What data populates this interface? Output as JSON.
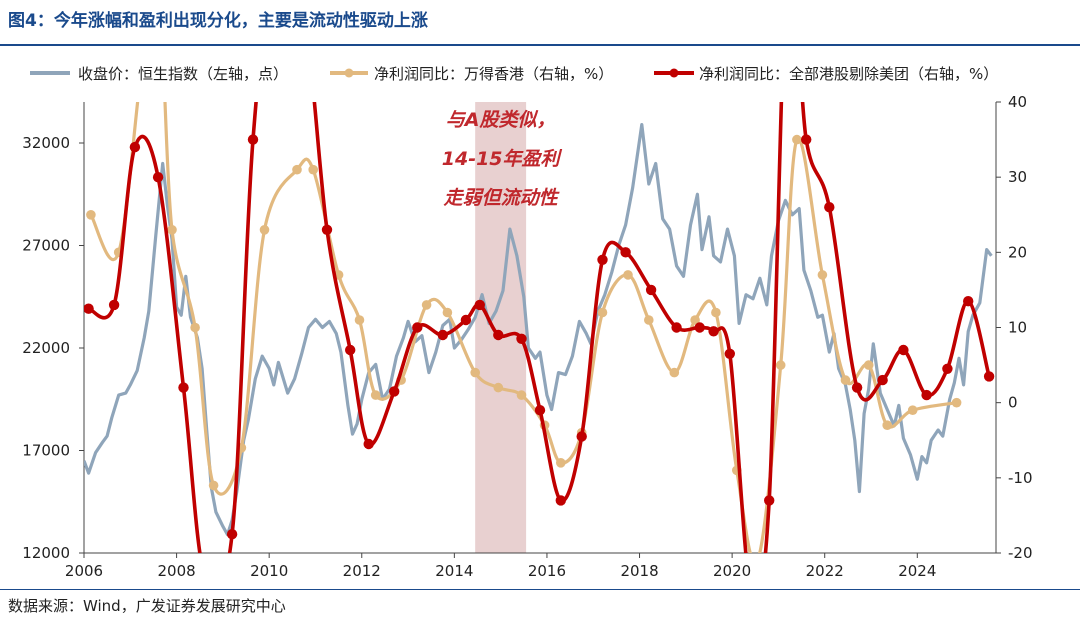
{
  "page": {
    "title": "图4：今年涨幅和盈利出现分化，主要是流动性驱动上涨",
    "source": "数据来源：Wind，广发证券发展研究中心"
  },
  "chart_data": {
    "type": "line",
    "title": "图4：今年涨幅和盈利出现分化，主要是流动性驱动上涨",
    "xlim": [
      2006.0,
      2025.7
    ],
    "x_ticks": [
      "2006",
      "2008",
      "2010",
      "2012",
      "2014",
      "2016",
      "2018",
      "2020",
      "2022",
      "2024"
    ],
    "y_left": {
      "ylim": [
        12000,
        34000
      ],
      "ticks": [
        "12000",
        "17000",
        "22000",
        "27000",
        "32000"
      ]
    },
    "y_right": {
      "ylim": [
        -20,
        40
      ],
      "ticks": [
        "-20",
        "-10",
        "0",
        "10",
        "20",
        "30",
        "40"
      ]
    },
    "legend_position": "top",
    "grid": false,
    "annotation": {
      "text_lines": [
        "与A股类似，",
        "14-15年盈利",
        "走弱但流动性"
      ],
      "shade_x": [
        2014.45,
        2015.55
      ],
      "color": "#c0282d"
    },
    "series": [
      {
        "name": "收盘价：恒生指数（左轴，点）",
        "axis": "left",
        "color": "#8fa5ba",
        "markers": false,
        "points": [
          [
            2006.0,
            16500
          ],
          [
            2006.1,
            15900
          ],
          [
            2006.25,
            16900
          ],
          [
            2006.4,
            17400
          ],
          [
            2006.5,
            17700
          ],
          [
            2006.6,
            18600
          ],
          [
            2006.75,
            19700
          ],
          [
            2006.9,
            19800
          ],
          [
            2007.0,
            20200
          ],
          [
            2007.15,
            20900
          ],
          [
            2007.3,
            22500
          ],
          [
            2007.4,
            23800
          ],
          [
            2007.55,
            27500
          ],
          [
            2007.7,
            31000
          ],
          [
            2007.8,
            29000
          ],
          [
            2007.9,
            27300
          ],
          [
            2008.0,
            24000
          ],
          [
            2008.1,
            23600
          ],
          [
            2008.2,
            25500
          ],
          [
            2008.3,
            23500
          ],
          [
            2008.45,
            22500
          ],
          [
            2008.55,
            21000
          ],
          [
            2008.65,
            18000
          ],
          [
            2008.75,
            15200
          ],
          [
            2008.85,
            14000
          ],
          [
            2009.0,
            13300
          ],
          [
            2009.1,
            12900
          ],
          [
            2009.2,
            13600
          ],
          [
            2009.3,
            15000
          ],
          [
            2009.45,
            17500
          ],
          [
            2009.55,
            18500
          ],
          [
            2009.7,
            20500
          ],
          [
            2009.85,
            21600
          ],
          [
            2010.0,
            21000
          ],
          [
            2010.1,
            20200
          ],
          [
            2010.2,
            21300
          ],
          [
            2010.4,
            19800
          ],
          [
            2010.55,
            20500
          ],
          [
            2010.7,
            21700
          ],
          [
            2010.85,
            23000
          ],
          [
            2011.0,
            23400
          ],
          [
            2011.15,
            23000
          ],
          [
            2011.3,
            23300
          ],
          [
            2011.45,
            22700
          ],
          [
            2011.55,
            21800
          ],
          [
            2011.7,
            19200
          ],
          [
            2011.8,
            17800
          ],
          [
            2011.9,
            18300
          ],
          [
            2012.0,
            19500
          ],
          [
            2012.15,
            20800
          ],
          [
            2012.3,
            21200
          ],
          [
            2012.45,
            19500
          ],
          [
            2012.6,
            20000
          ],
          [
            2012.75,
            21600
          ],
          [
            2012.9,
            22500
          ],
          [
            2013.0,
            23300
          ],
          [
            2013.15,
            22300
          ],
          [
            2013.3,
            22600
          ],
          [
            2013.45,
            20800
          ],
          [
            2013.6,
            21800
          ],
          [
            2013.75,
            23100
          ],
          [
            2013.9,
            23400
          ],
          [
            2014.0,
            22000
          ],
          [
            2014.15,
            22400
          ],
          [
            2014.3,
            22900
          ],
          [
            2014.45,
            23500
          ],
          [
            2014.6,
            24600
          ],
          [
            2014.75,
            23200
          ],
          [
            2014.9,
            23800
          ],
          [
            2015.05,
            24800
          ],
          [
            2015.2,
            27800
          ],
          [
            2015.35,
            26500
          ],
          [
            2015.5,
            24500
          ],
          [
            2015.6,
            22000
          ],
          [
            2015.75,
            21500
          ],
          [
            2015.85,
            21800
          ],
          [
            2016.0,
            19700
          ],
          [
            2016.1,
            19000
          ],
          [
            2016.25,
            20800
          ],
          [
            2016.4,
            20700
          ],
          [
            2016.55,
            21600
          ],
          [
            2016.7,
            23300
          ],
          [
            2016.85,
            22700
          ],
          [
            2016.95,
            22200
          ],
          [
            2017.1,
            23800
          ],
          [
            2017.25,
            24600
          ],
          [
            2017.4,
            25700
          ],
          [
            2017.55,
            27000
          ],
          [
            2017.7,
            28000
          ],
          [
            2017.85,
            29800
          ],
          [
            2018.05,
            32900
          ],
          [
            2018.2,
            30000
          ],
          [
            2018.35,
            31000
          ],
          [
            2018.5,
            28300
          ],
          [
            2018.65,
            27800
          ],
          [
            2018.8,
            26000
          ],
          [
            2018.95,
            25500
          ],
          [
            2019.1,
            28000
          ],
          [
            2019.25,
            29500
          ],
          [
            2019.35,
            26800
          ],
          [
            2019.5,
            28400
          ],
          [
            2019.6,
            26500
          ],
          [
            2019.75,
            26200
          ],
          [
            2019.9,
            27800
          ],
          [
            2020.05,
            26500
          ],
          [
            2020.15,
            23200
          ],
          [
            2020.3,
            24600
          ],
          [
            2020.45,
            24400
          ],
          [
            2020.6,
            25400
          ],
          [
            2020.75,
            24100
          ],
          [
            2020.85,
            26500
          ],
          [
            2021.0,
            28200
          ],
          [
            2021.15,
            29200
          ],
          [
            2021.3,
            28500
          ],
          [
            2021.45,
            28800
          ],
          [
            2021.55,
            25800
          ],
          [
            2021.7,
            24800
          ],
          [
            2021.85,
            23500
          ],
          [
            2021.95,
            23600
          ],
          [
            2022.1,
            21800
          ],
          [
            2022.2,
            22700
          ],
          [
            2022.3,
            21000
          ],
          [
            2022.45,
            20200
          ],
          [
            2022.55,
            19000
          ],
          [
            2022.65,
            17500
          ],
          [
            2022.75,
            15000
          ],
          [
            2022.85,
            18800
          ],
          [
            2022.95,
            20000
          ],
          [
            2023.05,
            22200
          ],
          [
            2023.2,
            19800
          ],
          [
            2023.35,
            19000
          ],
          [
            2023.5,
            18200
          ],
          [
            2023.6,
            19200
          ],
          [
            2023.7,
            17600
          ],
          [
            2023.85,
            16800
          ],
          [
            2024.0,
            15600
          ],
          [
            2024.1,
            16700
          ],
          [
            2024.2,
            16400
          ],
          [
            2024.3,
            17500
          ],
          [
            2024.45,
            18000
          ],
          [
            2024.55,
            17700
          ],
          [
            2024.7,
            19500
          ],
          [
            2024.8,
            20300
          ],
          [
            2024.9,
            21500
          ],
          [
            2025.0,
            20200
          ],
          [
            2025.1,
            22800
          ],
          [
            2025.2,
            23600
          ],
          [
            2025.35,
            24200
          ],
          [
            2025.5,
            26800
          ],
          [
            2025.6,
            26500
          ]
        ]
      },
      {
        "name": "净利润同比：万得香港（右轴，%）",
        "axis": "right",
        "color": "#e2b97f",
        "markers": true,
        "points": [
          [
            2006.15,
            25
          ],
          [
            2006.75,
            20
          ],
          [
            2007.3,
            47
          ],
          [
            2007.65,
            50
          ],
          [
            2007.9,
            23
          ],
          [
            2008.4,
            10
          ],
          [
            2008.8,
            -11
          ],
          [
            2009.4,
            -6
          ],
          [
            2009.9,
            23
          ],
          [
            2010.6,
            31
          ],
          [
            2010.95,
            31
          ],
          [
            2011.5,
            17
          ],
          [
            2011.95,
            11
          ],
          [
            2012.3,
            1
          ],
          [
            2012.85,
            3
          ],
          [
            2013.4,
            13
          ],
          [
            2013.85,
            12
          ],
          [
            2014.45,
            4
          ],
          [
            2014.95,
            2
          ],
          [
            2015.45,
            1
          ],
          [
            2015.95,
            -3
          ],
          [
            2016.3,
            -8
          ],
          [
            2016.75,
            -4
          ],
          [
            2017.2,
            12
          ],
          [
            2017.75,
            17
          ],
          [
            2018.2,
            11
          ],
          [
            2018.75,
            4
          ],
          [
            2019.2,
            11
          ],
          [
            2019.65,
            12
          ],
          [
            2020.1,
            -9
          ],
          [
            2020.55,
            -21
          ],
          [
            2021.05,
            5
          ],
          [
            2021.4,
            35
          ],
          [
            2021.95,
            17
          ],
          [
            2022.45,
            3
          ],
          [
            2022.95,
            5
          ],
          [
            2023.35,
            -3
          ],
          [
            2023.9,
            -1
          ],
          [
            2024.85,
            0
          ]
        ]
      },
      {
        "name": "净利润同比：全部港股剔除美团（右轴，%）",
        "axis": "right",
        "color": "#c00000",
        "markers": true,
        "points": [
          [
            2006.1,
            12.5
          ],
          [
            2006.65,
            13
          ],
          [
            2007.1,
            34
          ],
          [
            2007.6,
            30
          ],
          [
            2008.15,
            2
          ],
          [
            2008.6,
            -23
          ],
          [
            2009.2,
            -17.5
          ],
          [
            2009.65,
            35
          ],
          [
            2010.25,
            65
          ],
          [
            2010.8,
            50
          ],
          [
            2011.25,
            23
          ],
          [
            2011.75,
            7
          ],
          [
            2012.15,
            -5.5
          ],
          [
            2012.7,
            1.5
          ],
          [
            2013.2,
            10
          ],
          [
            2013.75,
            9
          ],
          [
            2014.25,
            11
          ],
          [
            2014.55,
            13
          ],
          [
            2014.95,
            9
          ],
          [
            2015.45,
            8.5
          ],
          [
            2015.85,
            -1
          ],
          [
            2016.3,
            -13
          ],
          [
            2016.75,
            -4.5
          ],
          [
            2017.2,
            19
          ],
          [
            2017.7,
            20
          ],
          [
            2018.25,
            15
          ],
          [
            2018.8,
            10
          ],
          [
            2019.3,
            10
          ],
          [
            2019.6,
            9.5
          ],
          [
            2019.95,
            6.5
          ],
          [
            2020.4,
            -25
          ],
          [
            2020.8,
            -13
          ],
          [
            2021.2,
            60
          ],
          [
            2021.6,
            35
          ],
          [
            2022.1,
            26
          ],
          [
            2022.7,
            2
          ],
          [
            2023.25,
            3
          ],
          [
            2023.7,
            7
          ],
          [
            2024.2,
            1
          ],
          [
            2024.65,
            4.5
          ],
          [
            2025.1,
            13.5
          ],
          [
            2025.55,
            3.5
          ]
        ]
      }
    ]
  }
}
